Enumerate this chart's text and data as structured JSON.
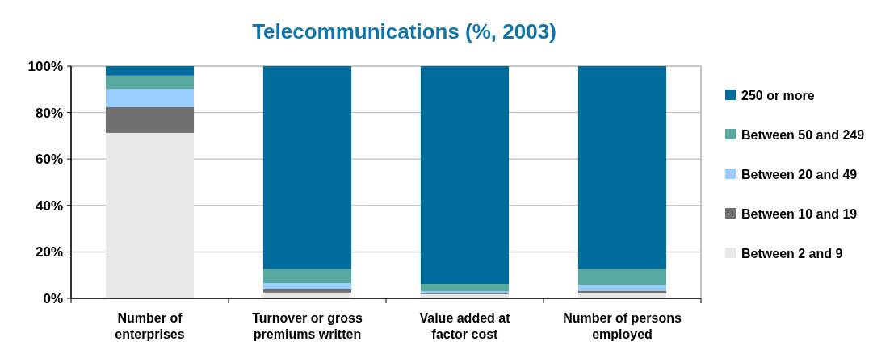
{
  "chart_data": {
    "type": "bar",
    "title": "Telecommunications (%, 2003)",
    "stacked": true,
    "categories": [
      "Number of enterprises",
      "Turnover or gross premiums written",
      "Value added at factor cost",
      "Number of persons employed"
    ],
    "series": [
      {
        "name": "Between 2 and 9",
        "color": "#e8e8e8",
        "values": [
          71.2,
          2.5,
          1.8,
          2.1
        ]
      },
      {
        "name": "Between 10 and 19",
        "color": "#707070",
        "values": [
          11.1,
          1.4,
          0.4,
          1.2
        ]
      },
      {
        "name": "Between 20 and 49",
        "color": "#99ccff",
        "values": [
          7.8,
          2.7,
          0.8,
          2.5
        ]
      },
      {
        "name": "Between 50 and 249",
        "color": "#58a9a0",
        "values": [
          5.8,
          6.0,
          3.2,
          6.8
        ]
      },
      {
        "name": "250 or more",
        "color": "#006c9b",
        "values": [
          4.1,
          87.4,
          93.8,
          87.4
        ]
      }
    ],
    "ylim": [
      0,
      100
    ],
    "yticks": [
      {
        "value": 0,
        "label": "0%"
      },
      {
        "value": 20,
        "label": "20%"
      },
      {
        "value": 40,
        "label": "40%"
      },
      {
        "value": 60,
        "label": "60%"
      },
      {
        "value": 80,
        "label": "80%"
      },
      {
        "value": 100,
        "label": "100%"
      }
    ],
    "grid": "y",
    "legend": "right"
  }
}
